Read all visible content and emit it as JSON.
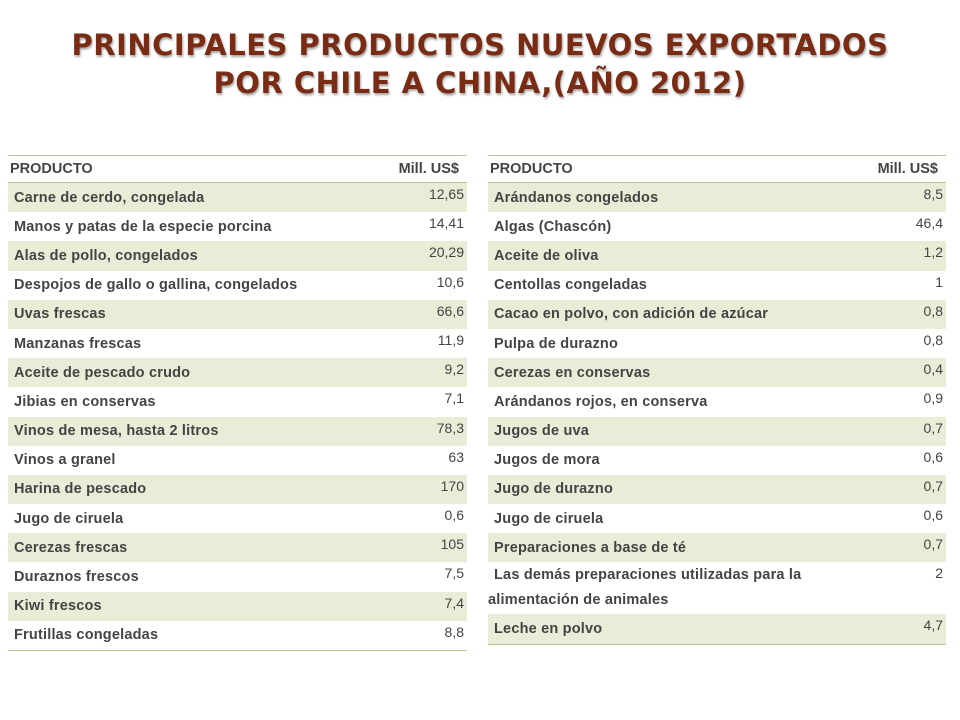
{
  "title": {
    "line1": "PRINCIPALES PRODUCTOS NUEVOS EXPORTADOS",
    "line2": "POR CHILE A CHINA,(AÑO 2012)"
  },
  "colors": {
    "title": "#7a2b14",
    "row_band": "#e7edd7",
    "rule": "#b7c68f",
    "text": "#444444"
  },
  "left_table": {
    "headers": {
      "product": "PRODUCTO",
      "value": "Mill. US$"
    },
    "rows": [
      {
        "product": "Carne de cerdo, congelada",
        "value": "12,65"
      },
      {
        "product": "Manos y patas de la especie porcina",
        "value": "14,41"
      },
      {
        "product": "Alas de pollo, congelados",
        "value": "20,29"
      },
      {
        "product": "Despojos de gallo o gallina, congelados",
        "value": "10,6"
      },
      {
        "product": "Uvas frescas",
        "value": "66,6"
      },
      {
        "product": "Manzanas frescas",
        "value": "11,9"
      },
      {
        "product": "Aceite de pescado crudo",
        "value": "9,2"
      },
      {
        "product": "Jibias  en conservas",
        "value": "7,1"
      },
      {
        "product": "Vinos de mesa, hasta 2 litros",
        "value": "78,3"
      },
      {
        "product": "Vinos a granel",
        "value": "63"
      },
      {
        "product": "Harina de pescado",
        "value": "170"
      },
      {
        "product": "Jugo de ciruela",
        "value": "0,6"
      },
      {
        "product": "Cerezas frescas",
        "value": "105"
      },
      {
        "product": "Duraznos frescos",
        "value": "7,5"
      },
      {
        "product": "Kiwi frescos",
        "value": "7,4"
      },
      {
        "product": "Frutillas congeladas",
        "value": "8,8"
      }
    ]
  },
  "right_table": {
    "headers": {
      "product": "PRODUCTO",
      "value": "Mill. US$"
    },
    "rows": [
      {
        "product": "Arándanos congelados",
        "value": "8,5"
      },
      {
        "product": "Algas (Chascón)",
        "value": "46,4"
      },
      {
        "product": "Aceite de oliva",
        "value": "1,2"
      },
      {
        "product": "Centollas congeladas",
        "value": "1"
      },
      {
        "product": "Cacao en polvo, con adición de azúcar",
        "value": "0,8"
      },
      {
        "product": "Pulpa de durazno",
        "value": "0,8"
      },
      {
        "product": "Cerezas en conservas",
        "value": "0,4"
      },
      {
        "product": "Arándanos rojos, en conserva",
        "value": "0,9"
      },
      {
        "product": "Jugos de uva",
        "value": "0,7"
      },
      {
        "product": "Jugos de mora",
        "value": "0,6"
      },
      {
        "product": "Jugo de durazno",
        "value": "0,7"
      },
      {
        "product": "Jugo de ciruela",
        "value": "0,6"
      },
      {
        "product": "Preparaciones a base de té",
        "value": "0,7"
      },
      {
        "product": "Las demás preparaciones utilizadas para la alimentación de animales",
        "value": "2"
      },
      {
        "product": "Leche en polvo",
        "value": "4,7"
      }
    ]
  }
}
